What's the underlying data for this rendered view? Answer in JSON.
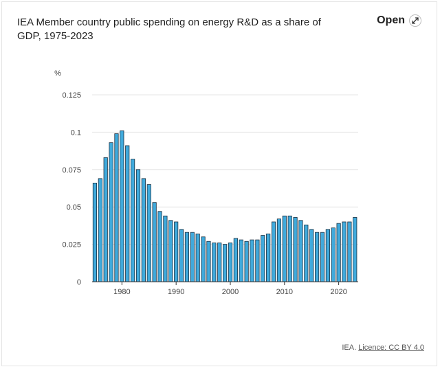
{
  "header": {
    "title": "IEA Member country public spending on energy R&D as a share of GDP, 1975-2023",
    "open_label": "Open",
    "open_icon": "expand-arrows-icon"
  },
  "footer": {
    "source": "IEA.",
    "license": "Licence: CC BY 4.0"
  },
  "colors": {
    "bar_fill": "#40aadc",
    "bar_stroke": "#1b2f3f",
    "grid": "#e6e6e6",
    "axis": "#333333"
  },
  "chart_data": {
    "type": "bar",
    "title": "IEA Member country public spending on energy R&D as a share of GDP, 1975-2023",
    "ylabel": "%",
    "xlabel": "",
    "ylim": [
      0,
      0.125
    ],
    "yticks": [
      0,
      0.025,
      0.05,
      0.075,
      0.1,
      0.125
    ],
    "ytick_labels": [
      "0",
      "0.025",
      "0.05",
      "0.075",
      "0.1",
      "0.125"
    ],
    "xticks": [
      1980,
      1990,
      2000,
      2010,
      2020
    ],
    "grid": true,
    "categories": [
      1975,
      1976,
      1977,
      1978,
      1979,
      1980,
      1981,
      1982,
      1983,
      1984,
      1985,
      1986,
      1987,
      1988,
      1989,
      1990,
      1991,
      1992,
      1993,
      1994,
      1995,
      1996,
      1997,
      1998,
      1999,
      2000,
      2001,
      2002,
      2003,
      2004,
      2005,
      2006,
      2007,
      2008,
      2009,
      2010,
      2011,
      2012,
      2013,
      2014,
      2015,
      2016,
      2017,
      2018,
      2019,
      2020,
      2021,
      2022,
      2023
    ],
    "values": [
      0.066,
      0.069,
      0.083,
      0.093,
      0.099,
      0.101,
      0.091,
      0.082,
      0.075,
      0.069,
      0.065,
      0.053,
      0.047,
      0.044,
      0.041,
      0.04,
      0.035,
      0.033,
      0.033,
      0.032,
      0.03,
      0.027,
      0.026,
      0.026,
      0.025,
      0.026,
      0.029,
      0.028,
      0.027,
      0.028,
      0.028,
      0.031,
      0.032,
      0.04,
      0.042,
      0.044,
      0.044,
      0.043,
      0.041,
      0.038,
      0.035,
      0.033,
      0.033,
      0.035,
      0.036,
      0.039,
      0.04,
      0.04,
      0.043
    ]
  }
}
